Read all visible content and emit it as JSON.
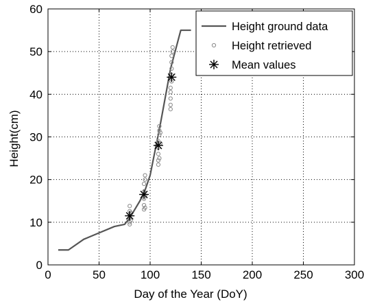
{
  "chart_data": {
    "type": "line",
    "xlabel": "Day of the Year (DoY)",
    "ylabel": "Height(cm)",
    "xlim": [
      0,
      300
    ],
    "ylim": [
      0,
      60
    ],
    "xticks": [
      "0",
      "50",
      "100",
      "150",
      "200",
      "250",
      "300"
    ],
    "yticks": [
      "0",
      "10",
      "20",
      "30",
      "40",
      "50",
      "60"
    ],
    "grid": true,
    "legend_position": "top-right",
    "series": [
      {
        "name": "Height ground data",
        "style": "line",
        "color": "#555555",
        "x": [
          10,
          20,
          35,
          50,
          65,
          75,
          80,
          85,
          90,
          95,
          100,
          110,
          120,
          130,
          140
        ],
        "y": [
          3.5,
          3.5,
          6,
          7.5,
          9,
          9.5,
          11,
          13,
          15,
          17.5,
          21,
          33,
          46,
          55,
          55
        ]
      },
      {
        "name": "Height retrieved",
        "style": "circle",
        "color": "#888888",
        "x": [
          80,
          80,
          80,
          80,
          80,
          80,
          81,
          81,
          94,
          94,
          94,
          94,
          94,
          95,
          95,
          95,
          95,
          108,
          108,
          108,
          108,
          108,
          109,
          109,
          109,
          109,
          110,
          110,
          120,
          120,
          120,
          120,
          120,
          121,
          121,
          121,
          121,
          121,
          122,
          122
        ],
        "y": [
          9.5,
          10,
          11,
          11.8,
          12.6,
          13.8,
          10.4,
          12.2,
          13,
          14,
          15.5,
          17.2,
          19,
          20,
          21,
          13.4,
          16.3,
          23.5,
          24.5,
          26,
          27.5,
          29,
          30.5,
          31.5,
          32.5,
          25,
          28.5,
          31,
          36.5,
          37.5,
          39,
          40.5,
          41.5,
          43,
          44.5,
          46,
          47.5,
          49,
          50,
          51
        ]
      },
      {
        "name": "Mean values",
        "style": "asterisk",
        "color": "#000000",
        "x": [
          80,
          94,
          108,
          121
        ],
        "y": [
          11.5,
          16.5,
          28,
          44
        ]
      }
    ]
  }
}
